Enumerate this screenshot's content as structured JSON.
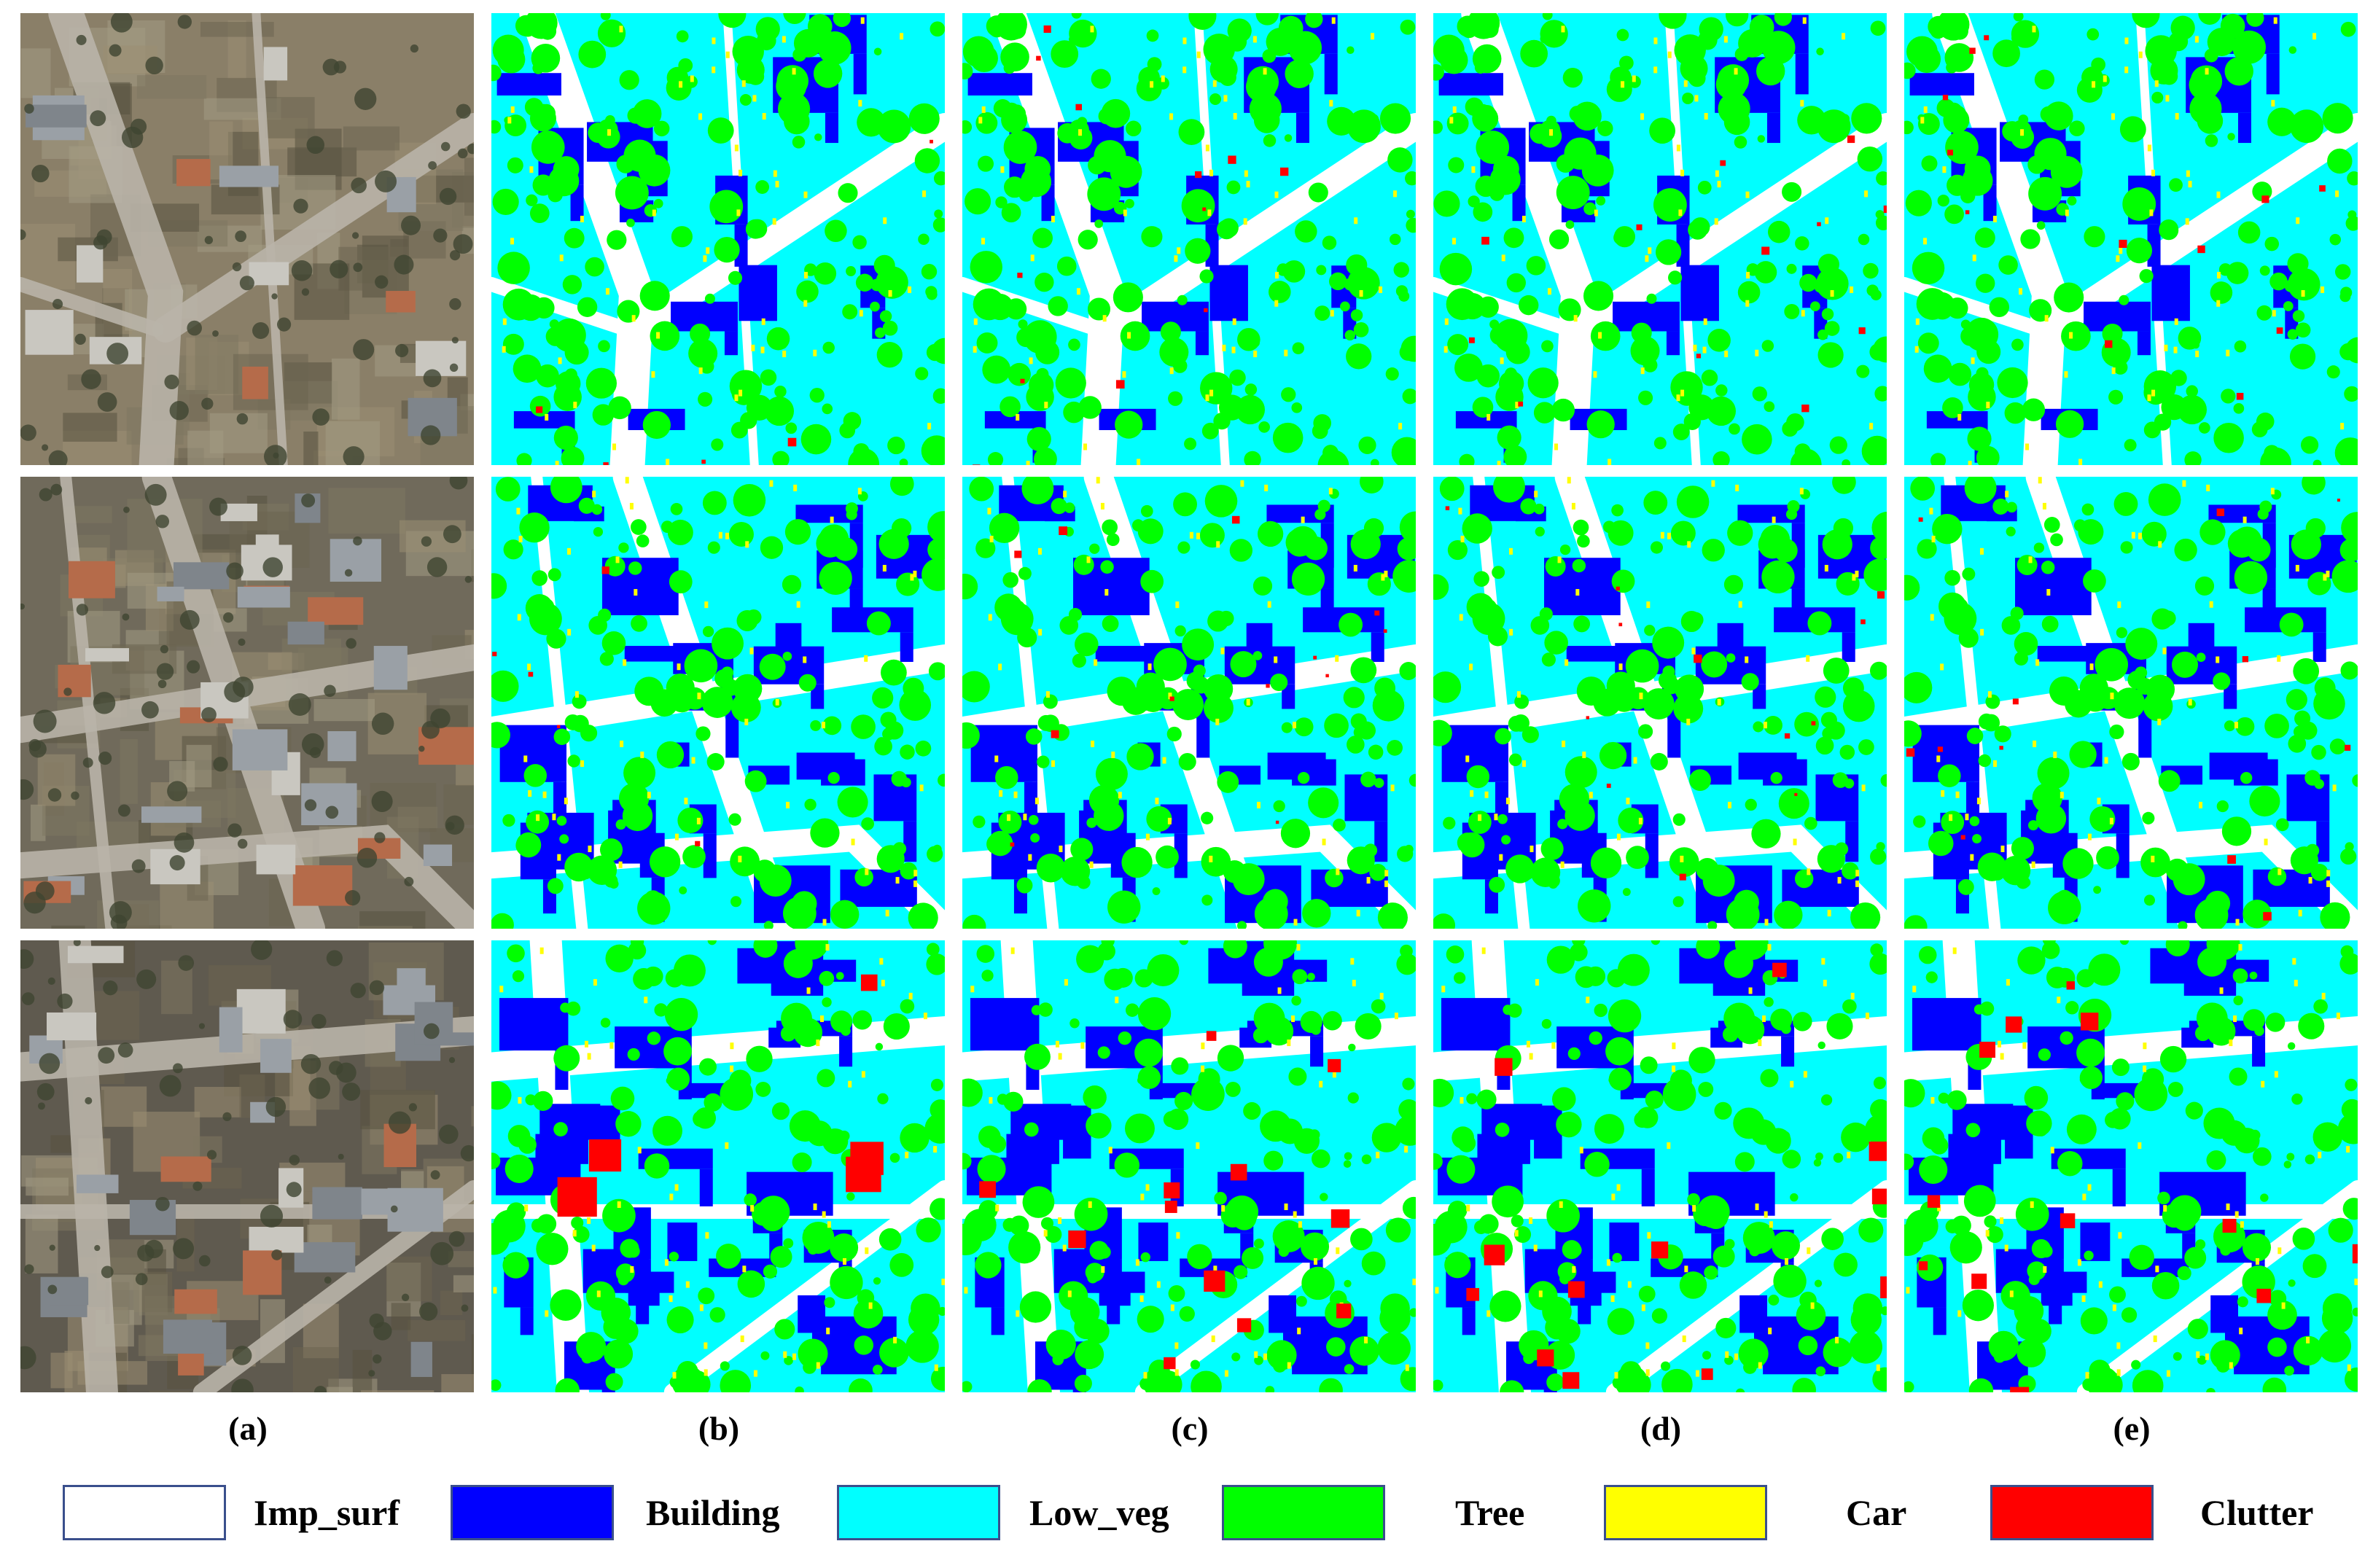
{
  "panels": {
    "columns": [
      "a",
      "b",
      "c",
      "d",
      "e"
    ],
    "rows": 3
  },
  "column_labels": [
    "(a)",
    "(b)",
    "(c)",
    "(d)",
    "(e)"
  ],
  "legend": [
    {
      "label": "Imp_surf",
      "color": "#ffffff"
    },
    {
      "label": "Building",
      "color": "#0000ff"
    },
    {
      "label": "Low_veg",
      "color": "#00ffff"
    },
    {
      "label": "Tree",
      "color": "#00ff00"
    },
    {
      "label": "Car",
      "color": "#ffff00"
    },
    {
      "label": "Clutter",
      "color": "#ff0000"
    }
  ],
  "palette": {
    "imp_surf": "#ffffff",
    "building": "#0000ff",
    "low_veg": "#00ffff",
    "tree": "#00ff00",
    "car": "#ffff00",
    "clutter": "#ff0000",
    "legend_border": "#3a4f8c"
  }
}
